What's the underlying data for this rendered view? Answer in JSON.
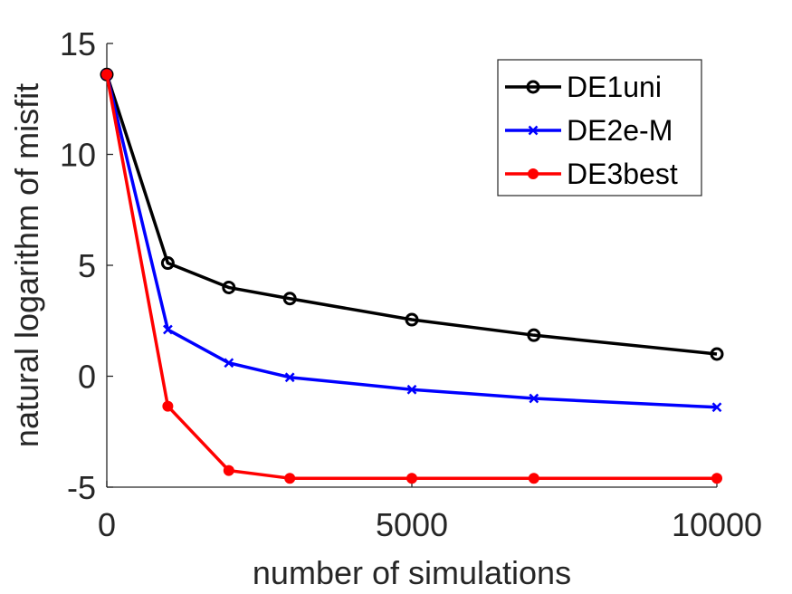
{
  "chart_data": {
    "type": "line",
    "title": "",
    "xlabel": "number of simulations",
    "ylabel": "natural logarithm of misfit",
    "xlim": [
      0,
      10000
    ],
    "ylim": [
      -5,
      15
    ],
    "xticks": [
      0,
      5000,
      10000
    ],
    "yticks": [
      -5,
      0,
      5,
      10,
      15
    ],
    "xtick_labels": [
      "0",
      "5000",
      "10000"
    ],
    "ytick_labels": [
      "-5",
      "0",
      "5",
      "10",
      "15"
    ],
    "grid": false,
    "legend_position": "top-right",
    "x": [
      0,
      1000,
      2000,
      3000,
      5000,
      7000,
      10000
    ],
    "series": [
      {
        "name": "DE1uni",
        "color": "#000000",
        "marker": "circle-open",
        "values": [
          13.6,
          5.1,
          4.0,
          3.5,
          2.55,
          1.85,
          1.0
        ]
      },
      {
        "name": "DE2e-M",
        "color": "#0000ff",
        "marker": "x",
        "values": [
          13.6,
          2.1,
          0.6,
          -0.05,
          -0.6,
          -1.0,
          -1.4
        ]
      },
      {
        "name": "DE3best",
        "color": "#ff0000",
        "marker": "circle-filled",
        "values": [
          13.6,
          -1.35,
          -4.25,
          -4.6,
          -4.6,
          -4.6,
          -4.6
        ]
      }
    ]
  }
}
